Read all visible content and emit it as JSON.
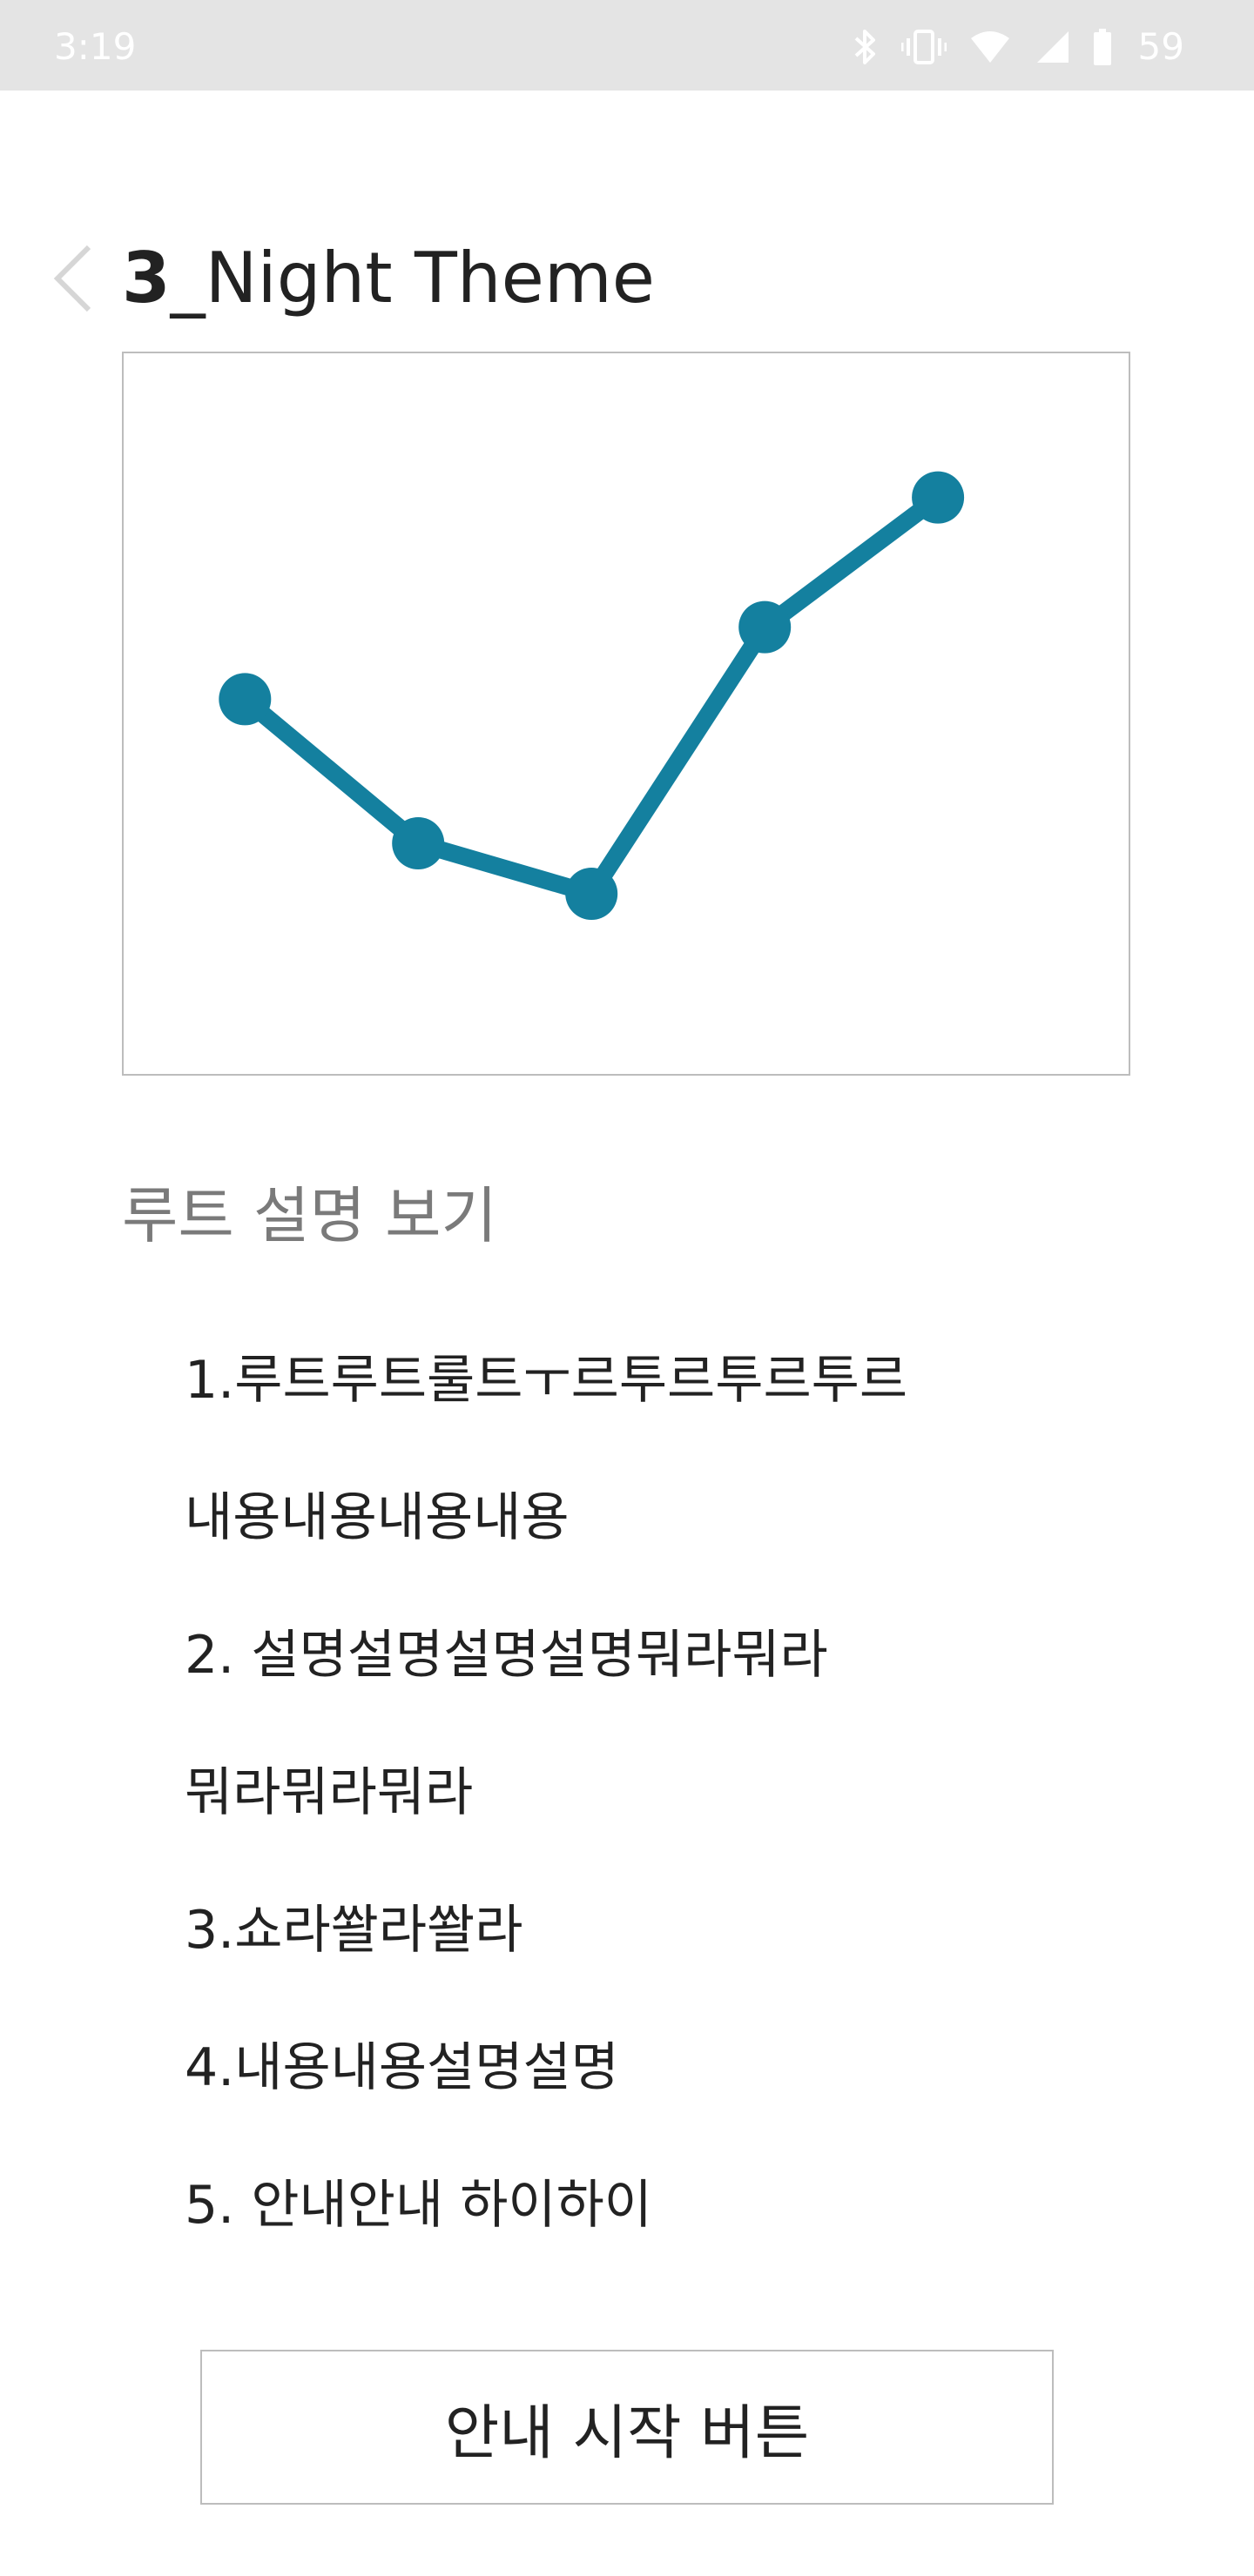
{
  "status_bar": {
    "time": "3:19",
    "battery": "59",
    "icons": [
      "bluetooth-icon",
      "vibrate-icon",
      "wifi-icon",
      "signal-icon",
      "battery-icon"
    ]
  },
  "header": {
    "title_number": "3",
    "title_text": "_Night Theme",
    "back_icon": "chevron-left-icon"
  },
  "chart_data": {
    "type": "line",
    "x": [
      1,
      2,
      3,
      4,
      5
    ],
    "y": [
      0.52,
      0.32,
      0.25,
      0.62,
      0.8
    ],
    "ylim": [
      0,
      1
    ],
    "xlim": [
      0.3,
      6.1
    ],
    "grid": false,
    "line_color": "#14809f"
  },
  "section": {
    "title": "루트 설명 보기"
  },
  "route_items": [
    "1.루트루트룰트ㅜ르투르투르투르",
    "내용내용내용내용",
    "2. 설명설명설명설명뭐라뭐라",
    "뭐라뭐라뭐라",
    "3.쇼라쏼라쏼라",
    "4.내용내용설명설명",
    "5. 안내안내 하이하이"
  ],
  "start_button": {
    "label": "안내 시작 버튼"
  },
  "colors": {
    "accent": "#14809f",
    "status_bar": "#e4e4e4",
    "section_title": "#7a7a7a",
    "border": "#bdbdbd"
  }
}
